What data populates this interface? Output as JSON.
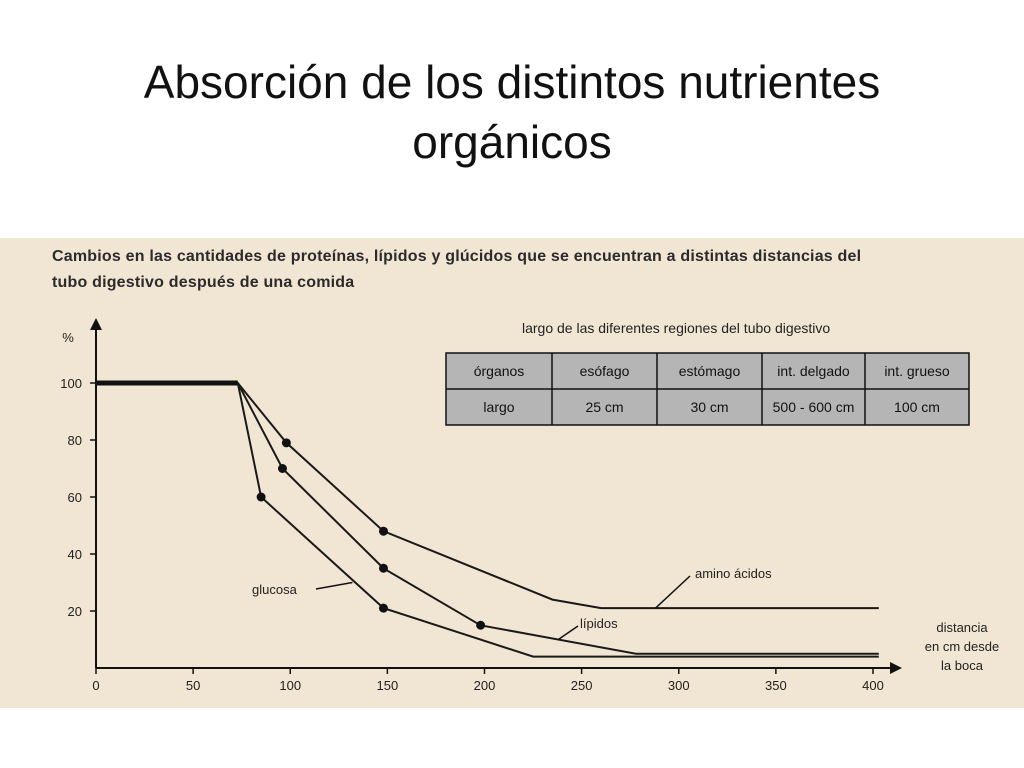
{
  "title": {
    "line1": "Absorción de los distintos nutrientes",
    "line2": "orgánicos"
  },
  "figure": {
    "caption_line1": "Cambios en las cantidades de proteínas, lípidos y glúcidos que se encuentran a distintas distancias del",
    "caption_line2": "tubo digestivo después de una comida",
    "background": "#f1e6d3",
    "table_color": "#b5b5b5"
  },
  "organ_table": {
    "title": "largo de las diferentes regiones del tubo digestivo",
    "headers": [
      "órganos",
      "esófago",
      "estómago",
      "int. delgado",
      "int. grueso"
    ],
    "row": [
      "largo",
      "25 cm",
      "30 cm",
      "500 - 600 cm",
      "100 cm"
    ]
  },
  "chart_data": {
    "type": "line",
    "title": "Cambios en las cantidades de proteínas, lípidos y glúcidos que se encuentran a distintas distancias del tubo digestivo después de una comida",
    "ylabel": "%",
    "xlabel": "distancia en cm desde la boca",
    "xlabel_lines": [
      "distancia",
      "en cm desde",
      "la boca"
    ],
    "xlim": [
      0,
      400
    ],
    "ylim": [
      0,
      100
    ],
    "xticks": [
      0,
      50,
      100,
      150,
      200,
      250,
      300,
      350,
      400
    ],
    "yticks": [
      20,
      40,
      60,
      80,
      100
    ],
    "grid": false,
    "series": [
      {
        "name": "amino ácidos",
        "points": [
          [
            0,
            100
          ],
          [
            73,
            100
          ],
          [
            98,
            79
          ],
          [
            148,
            48
          ],
          [
            235,
            24
          ],
          [
            260,
            21
          ],
          [
            403,
            21
          ]
        ],
        "markers": [
          [
            98,
            79
          ],
          [
            148,
            48
          ]
        ]
      },
      {
        "name": "lípidos",
        "points": [
          [
            73,
            100
          ],
          [
            96,
            70
          ],
          [
            148,
            35
          ],
          [
            198,
            15
          ],
          [
            278,
            5
          ],
          [
            403,
            5
          ]
        ],
        "markers": [
          [
            96,
            70
          ],
          [
            148,
            35
          ],
          [
            198,
            15
          ]
        ]
      },
      {
        "name": "glucosa",
        "points": [
          [
            73,
            100
          ],
          [
            85,
            60
          ],
          [
            148,
            21
          ],
          [
            225,
            4
          ],
          [
            403,
            4
          ]
        ],
        "markers": [
          [
            85,
            60
          ],
          [
            148,
            21
          ]
        ]
      }
    ],
    "annotations": [
      "amino ácidos",
      "lípidos",
      "glucosa"
    ]
  }
}
